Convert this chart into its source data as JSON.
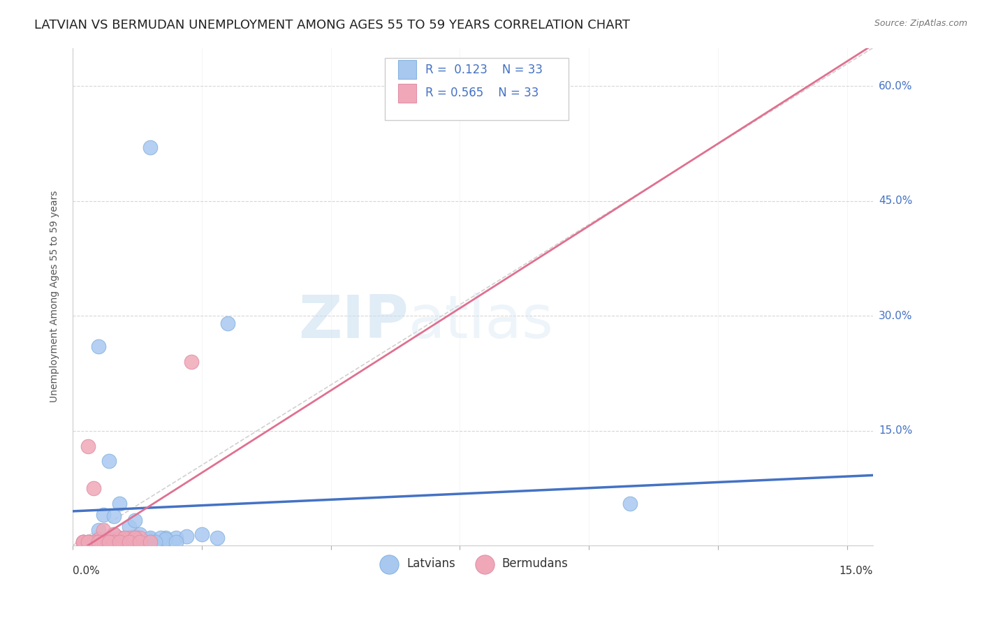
{
  "title": "LATVIAN VS BERMUDAN UNEMPLOYMENT AMONG AGES 55 TO 59 YEARS CORRELATION CHART",
  "source": "Source: ZipAtlas.com",
  "ylabel": "Unemployment Among Ages 55 to 59 years",
  "ylim": [
    0,
    0.65
  ],
  "xlim": [
    0,
    0.155
  ],
  "r_latvian": 0.123,
  "r_bermudan": 0.565,
  "n_latvian": 33,
  "n_bermudan": 33,
  "latvian_color": "#a8c8f0",
  "bermudan_color": "#f0a8b8",
  "latvian_line_color": "#4472c4",
  "bermudan_line_color": "#e07090",
  "diagonal_line_color": "#cccccc",
  "background_color": "#ffffff",
  "watermark_zip": "ZIP",
  "watermark_atlas": "atlas",
  "latvian_points_x": [
    0.015,
    0.03,
    0.005,
    0.008,
    0.01,
    0.012,
    0.015,
    0.018,
    0.02,
    0.022,
    0.025,
    0.028,
    0.005,
    0.007,
    0.009,
    0.011,
    0.013,
    0.015,
    0.017,
    0.006,
    0.008,
    0.012,
    0.002,
    0.003,
    0.004,
    0.006,
    0.108,
    0.018,
    0.015,
    0.01,
    0.013,
    0.016,
    0.02
  ],
  "latvian_points_y": [
    0.52,
    0.29,
    0.02,
    0.015,
    0.01,
    0.012,
    0.008,
    0.01,
    0.01,
    0.012,
    0.015,
    0.01,
    0.26,
    0.11,
    0.055,
    0.025,
    0.015,
    0.01,
    0.01,
    0.04,
    0.038,
    0.033,
    0.005,
    0.005,
    0.005,
    0.005,
    0.055,
    0.008,
    0.005,
    0.005,
    0.005,
    0.005,
    0.005
  ],
  "bermudan_points_x": [
    0.002,
    0.003,
    0.005,
    0.007,
    0.008,
    0.009,
    0.01,
    0.011,
    0.012,
    0.013,
    0.003,
    0.004,
    0.006,
    0.008,
    0.01,
    0.012,
    0.002,
    0.003,
    0.004,
    0.005,
    0.006,
    0.007,
    0.008,
    0.023,
    0.004,
    0.002,
    0.003,
    0.005,
    0.007,
    0.009,
    0.011,
    0.013,
    0.015
  ],
  "bermudan_points_y": [
    0.005,
    0.005,
    0.008,
    0.007,
    0.007,
    0.01,
    0.008,
    0.01,
    0.01,
    0.01,
    0.13,
    0.075,
    0.02,
    0.015,
    0.01,
    0.01,
    0.005,
    0.005,
    0.005,
    0.005,
    0.005,
    0.005,
    0.005,
    0.24,
    0.005,
    0.005,
    0.005,
    0.005,
    0.005,
    0.005,
    0.005,
    0.005,
    0.005
  ],
  "title_fontsize": 13,
  "axis_label_fontsize": 10,
  "tick_fontsize": 11,
  "legend_fontsize": 12
}
